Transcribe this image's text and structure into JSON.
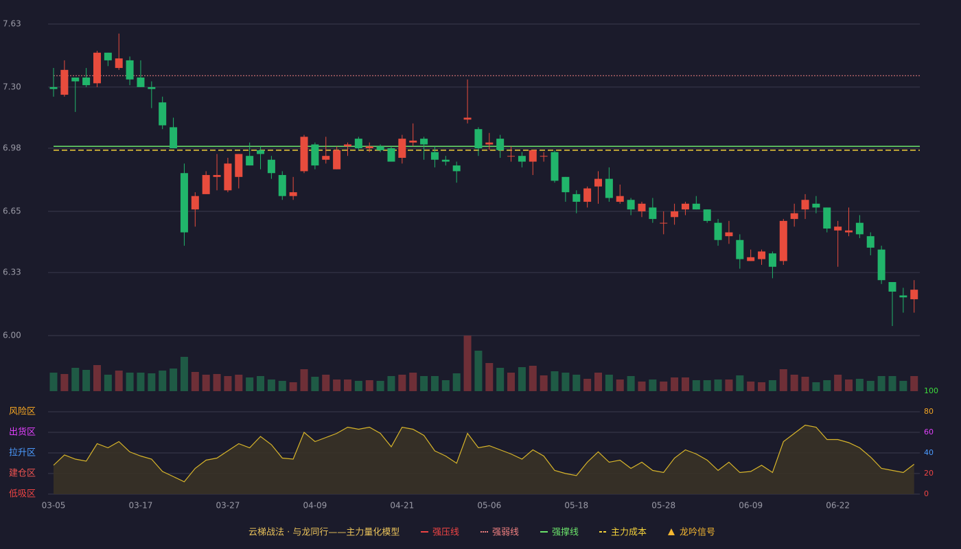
{
  "chart_data": [
    {
      "type": "candlestick",
      "categories": [
        "03-05",
        null,
        null,
        null,
        null,
        null,
        null,
        null,
        "03-17",
        null,
        null,
        null,
        null,
        null,
        null,
        null,
        "03-27",
        null,
        null,
        null,
        null,
        null,
        null,
        null,
        "04-09",
        null,
        null,
        null,
        null,
        null,
        null,
        null,
        "04-21",
        null,
        null,
        null,
        null,
        null,
        null,
        null,
        "05-06",
        null,
        null,
        null,
        null,
        null,
        null,
        null,
        "05-18",
        null,
        null,
        null,
        null,
        null,
        null,
        null,
        "05-28",
        null,
        null,
        null,
        null,
        null,
        null,
        null,
        "06-09",
        null,
        null,
        null,
        null,
        null,
        null,
        null,
        "06-22",
        null,
        null,
        null,
        null,
        null,
        null,
        null
      ],
      "open": [
        7.3,
        7.26,
        7.35,
        7.35,
        7.32,
        7.48,
        7.4,
        7.44,
        7.35,
        7.3,
        7.22,
        7.09,
        6.85,
        6.66,
        6.74,
        6.83,
        6.76,
        6.83,
        6.94,
        6.97,
        6.92,
        6.84,
        6.73,
        6.86,
        7.0,
        6.92,
        6.87,
        6.99,
        7.03,
        6.98,
        6.99,
        6.98,
        6.93,
        7.01,
        7.03,
        6.96,
        6.92,
        6.89,
        7.13,
        7.08,
        7.0,
        7.03,
        6.94,
        6.94,
        6.91,
        6.94,
        6.96,
        6.83,
        6.74,
        6.7,
        6.78,
        6.82,
        6.7,
        6.71,
        6.65,
        6.67,
        6.59,
        6.62,
        6.66,
        6.69,
        6.66,
        6.59,
        6.52,
        6.5,
        6.39,
        6.4,
        6.43,
        6.39,
        6.61,
        6.66,
        6.69,
        6.67,
        6.55,
        6.54,
        6.59,
        6.52,
        6.45,
        6.28,
        6.21,
        6.19
      ],
      "close": [
        7.29,
        7.39,
        7.33,
        7.31,
        7.48,
        7.44,
        7.45,
        7.34,
        7.3,
        7.29,
        7.1,
        6.98,
        6.54,
        6.73,
        6.84,
        6.84,
        6.9,
        6.95,
        6.89,
        6.95,
        6.85,
        6.73,
        6.75,
        7.04,
        6.89,
        6.94,
        6.97,
        7.0,
        6.98,
        6.99,
        6.97,
        6.91,
        7.03,
        7.02,
        7.0,
        6.92,
        6.91,
        6.86,
        7.14,
        6.98,
        7.01,
        6.97,
        6.94,
        6.91,
        6.97,
        6.94,
        6.81,
        6.75,
        6.7,
        6.77,
        6.82,
        6.72,
        6.73,
        6.66,
        6.69,
        6.61,
        6.59,
        6.65,
        6.69,
        6.66,
        6.6,
        6.5,
        6.54,
        6.4,
        6.41,
        6.44,
        6.36,
        6.6,
        6.64,
        6.71,
        6.67,
        6.56,
        6.57,
        6.55,
        6.53,
        6.46,
        6.29,
        6.23,
        6.2,
        6.24
      ],
      "low": [
        7.25,
        7.25,
        7.17,
        7.3,
        7.3,
        7.41,
        7.39,
        7.31,
        7.3,
        7.19,
        7.08,
        6.98,
        6.47,
        6.57,
        6.74,
        6.76,
        6.75,
        6.77,
        6.89,
        6.87,
        6.82,
        6.71,
        6.71,
        6.85,
        6.87,
        6.9,
        6.87,
        6.94,
        6.97,
        6.96,
        6.96,
        6.91,
        6.9,
        6.99,
        6.92,
        6.88,
        6.89,
        6.8,
        7.11,
        6.94,
        6.97,
        6.93,
        6.91,
        6.88,
        6.84,
        6.91,
        6.8,
        6.7,
        6.64,
        6.67,
        6.69,
        6.7,
        6.69,
        6.63,
        6.62,
        6.59,
        6.53,
        6.58,
        6.63,
        6.66,
        6.59,
        6.47,
        6.48,
        6.35,
        6.39,
        6.37,
        6.3,
        6.37,
        6.57,
        6.61,
        6.64,
        6.54,
        6.36,
        6.52,
        6.51,
        6.42,
        6.27,
        6.05,
        6.12,
        6.12
      ],
      "high": [
        7.4,
        7.44,
        7.35,
        7.4,
        7.49,
        7.48,
        7.58,
        7.46,
        7.44,
        7.33,
        7.25,
        7.14,
        6.9,
        6.75,
        6.86,
        6.95,
        6.93,
        6.95,
        7.01,
        6.99,
        6.94,
        6.86,
        6.83,
        7.05,
        7.01,
        7.04,
        6.99,
        7.01,
        7.04,
        7.01,
        7.0,
        6.99,
        7.05,
        7.11,
        7.04,
        6.99,
        6.94,
        6.91,
        7.34,
        7.09,
        7.06,
        7.05,
        6.99,
        6.96,
        6.97,
        6.96,
        6.97,
        6.83,
        6.76,
        6.78,
        6.86,
        6.88,
        6.79,
        6.72,
        6.7,
        6.72,
        6.65,
        6.69,
        6.7,
        6.73,
        6.66,
        6.61,
        6.6,
        6.53,
        6.45,
        6.45,
        6.44,
        6.61,
        6.69,
        6.74,
        6.73,
        6.67,
        6.6,
        6.67,
        6.63,
        6.54,
        6.47,
        6.28,
        6.25,
        6.29
      ],
      "up_color": "#e84c3d",
      "down_color": "#21b56b",
      "ylim": [
        6,
        7.63
      ],
      "yticks": [
        {
          "value": 6,
          "label": "6.00"
        },
        6.33,
        6.65,
        6.98,
        {
          "value": 7.3,
          "label": "7.30"
        },
        7.63
      ],
      "grid": true,
      "legend_title": "云梯战法 · 与龙同行——主力量化模型",
      "levels": [
        {
          "name": "强压线",
          "color": "#ef4444",
          "style": "solid"
        },
        {
          "name": "强弱线",
          "color": "#f08080",
          "style": "dotted",
          "value": 7.36
        },
        {
          "name": "强撑线",
          "color": "#6be36b",
          "style": "solid",
          "value": 6.99
        },
        {
          "name": "主力成本",
          "color": "#f5d33b",
          "style": "dashed",
          "value": 6.97
        },
        {
          "name": "龙吟信号",
          "color": "#f5b731",
          "style": "marker"
        }
      ]
    },
    {
      "type": "bar",
      "values": [
        27,
        25,
        34,
        31,
        38,
        24,
        30,
        27,
        27,
        26,
        30,
        33,
        50,
        28,
        24,
        25,
        22,
        24,
        20,
        22,
        17,
        15,
        13,
        32,
        21,
        24,
        17,
        17,
        15,
        16,
        15,
        22,
        24,
        27,
        22,
        22,
        16,
        26,
        81,
        59,
        41,
        34,
        27,
        35,
        37,
        23,
        29,
        27,
        24,
        18,
        27,
        24,
        17,
        22,
        14,
        17,
        14,
        20,
        20,
        16,
        16,
        17,
        17,
        23,
        14,
        13,
        16,
        32,
        24,
        21,
        13,
        16,
        24,
        17,
        18,
        15,
        22,
        22,
        15,
        22
      ]
    },
    {
      "type": "area",
      "values": [
        28,
        38,
        34,
        32,
        49,
        45,
        51,
        41,
        37,
        34,
        22,
        17,
        12,
        25,
        33,
        35,
        42,
        49,
        45,
        56,
        48,
        35,
        34,
        60,
        51,
        55,
        59,
        65,
        63,
        65,
        59,
        46,
        65,
        63,
        57,
        42,
        37,
        30,
        59,
        45,
        47,
        43,
        39,
        34,
        43,
        37,
        23,
        20,
        18,
        31,
        41,
        31,
        33,
        25,
        31,
        23,
        21,
        35,
        43,
        39,
        33,
        23,
        31,
        21,
        22,
        28,
        21,
        51,
        59,
        67,
        65,
        53,
        53,
        50,
        45,
        36,
        25,
        23,
        21,
        29
      ],
      "color": "#d9b62a",
      "ylim": [
        0,
        100
      ],
      "yticks": [
        0,
        20,
        40,
        60,
        80,
        100
      ],
      "ytick_colors": [
        "#ef4444",
        "#ef4444",
        "#4b9bff",
        "#e040fb",
        "#f5a623",
        "#3ddc3d"
      ],
      "grid": true,
      "zones": [
        {
          "label": "低吸区",
          "value": 0,
          "color": "#ef4444"
        },
        {
          "label": "建仓区",
          "value": 20,
          "color": "#ef5350"
        },
        {
          "label": "拉升区",
          "value": 40,
          "color": "#4b9bff"
        },
        {
          "label": "出货区",
          "value": 60,
          "color": "#e040fb"
        },
        {
          "label": "风险区",
          "value": 80,
          "color": "#f5a623"
        }
      ]
    }
  ]
}
